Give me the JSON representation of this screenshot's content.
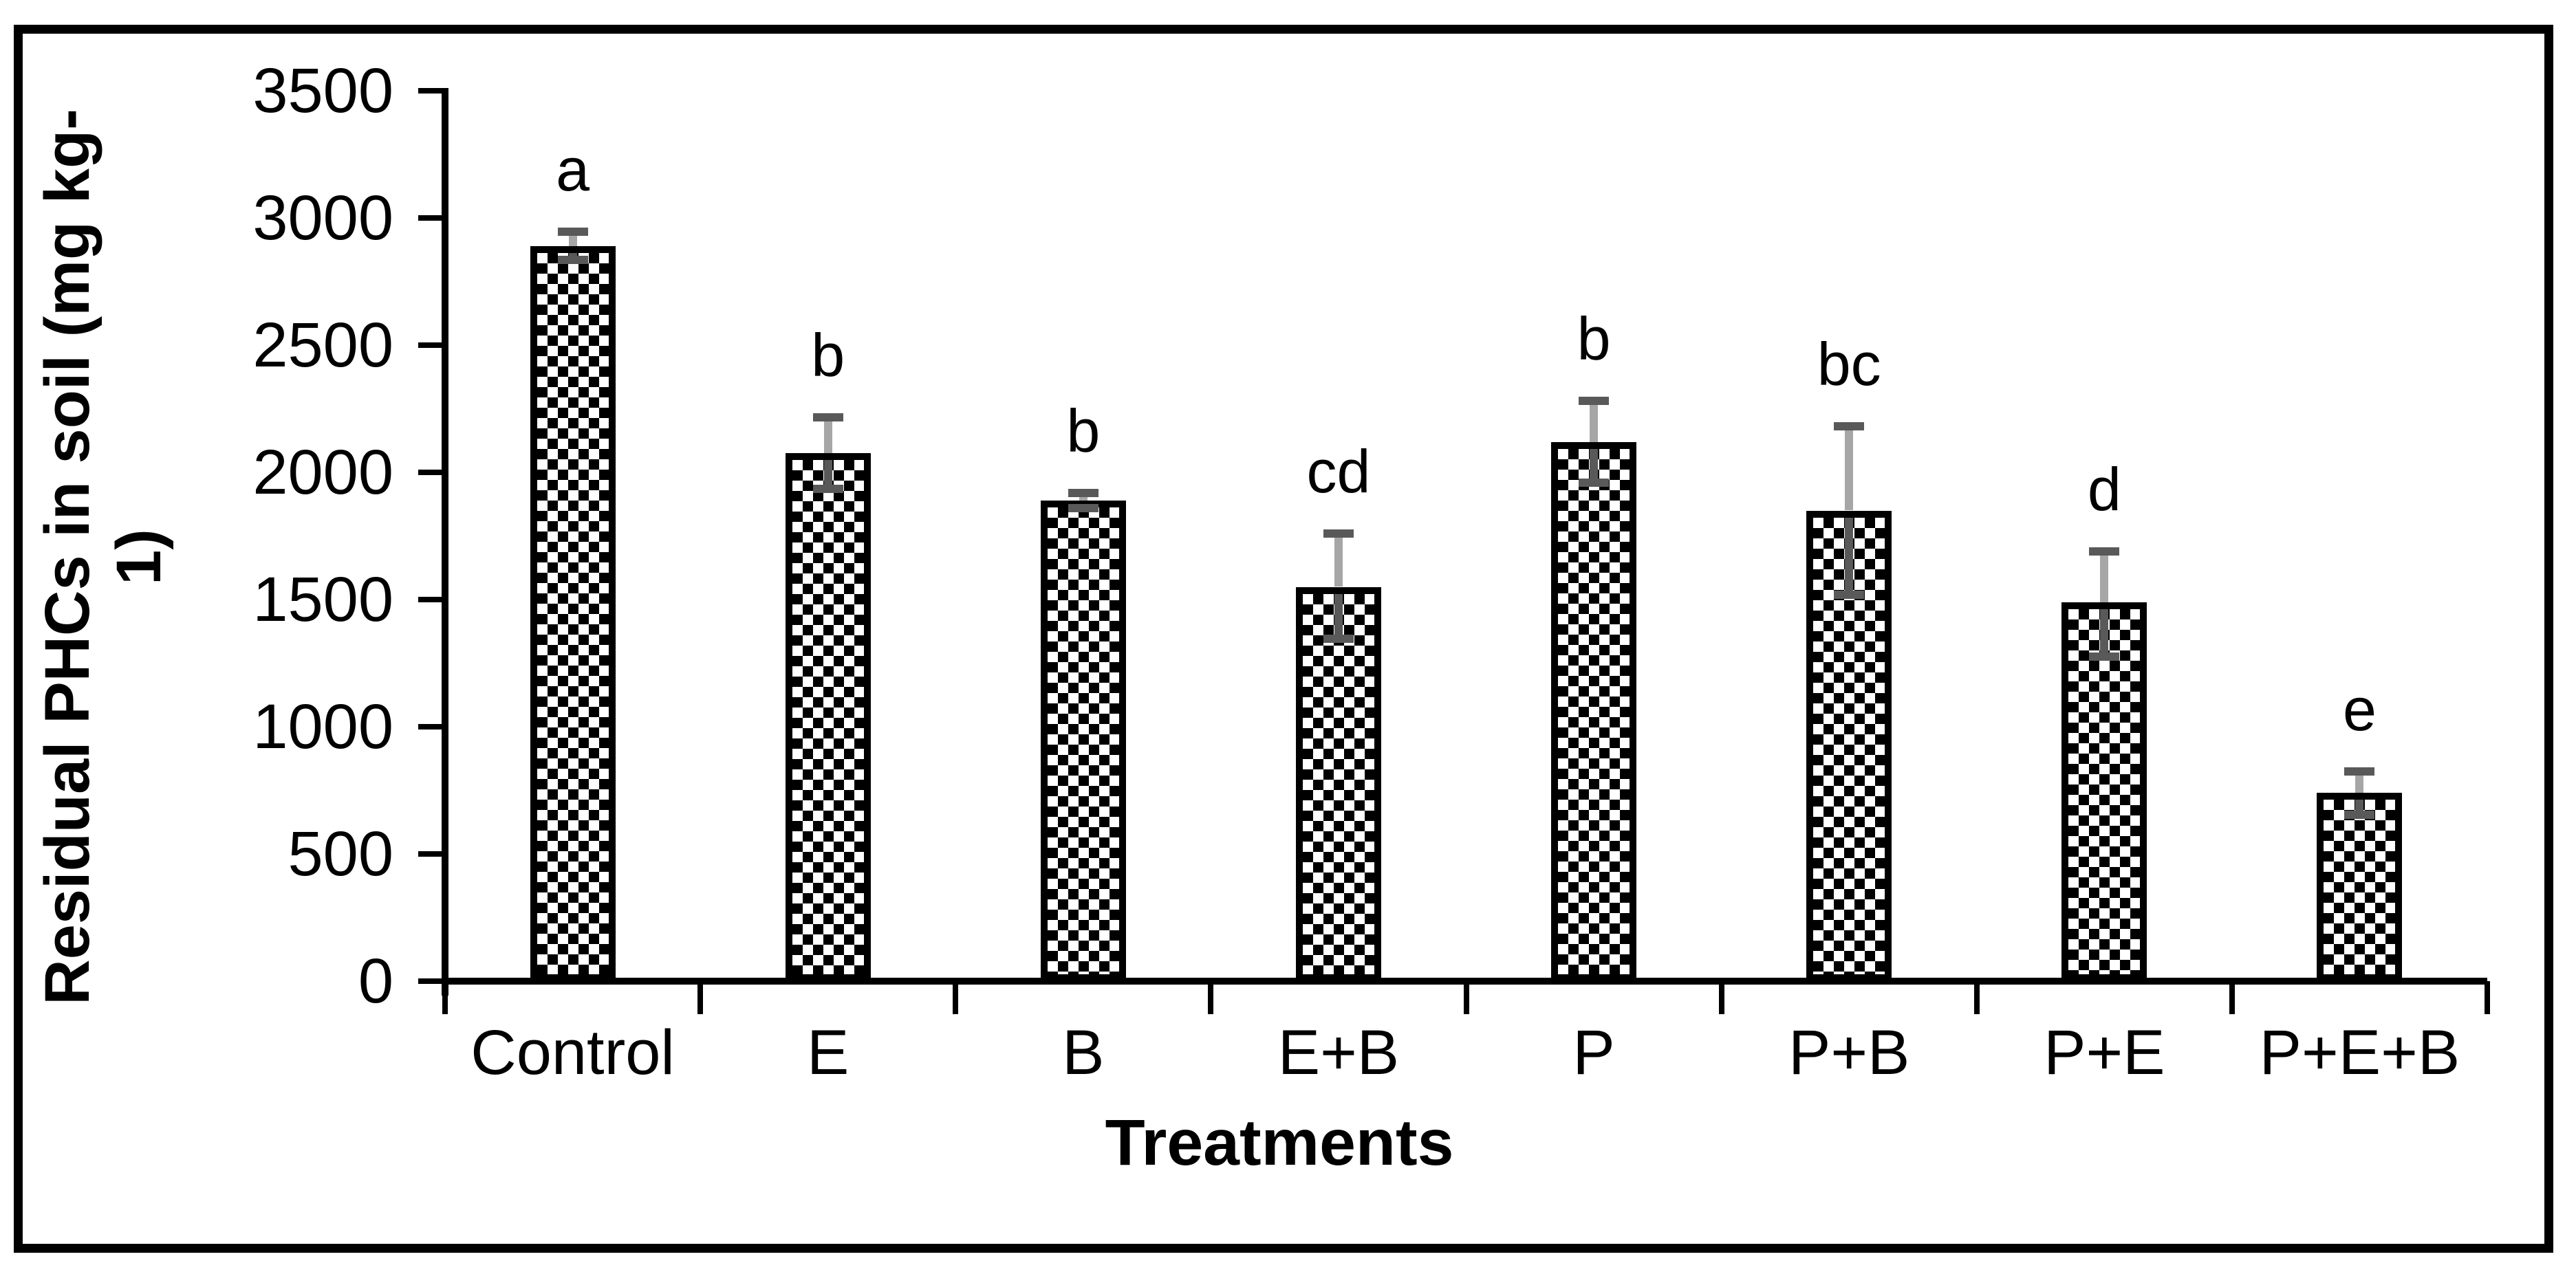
{
  "chart_data": {
    "type": "bar",
    "title": "",
    "xlabel": "Treatments",
    "ylabel": "Residual PHCs in soil (mg kg-1)",
    "ylabel_lines": [
      "Residual PHCs in soil (mg kg-",
      "1)"
    ],
    "categories": [
      "Control",
      "E",
      "B",
      "E+B",
      "P",
      "P+B",
      "P+E",
      "P+E+B"
    ],
    "values": [
      2890,
      2075,
      1890,
      1550,
      2120,
      1850,
      1490,
      740
    ],
    "sig_letters": [
      "a",
      "b",
      "b",
      "cd",
      "b",
      "bc",
      "d",
      "e"
    ],
    "error_plus": [
      55,
      140,
      30,
      210,
      160,
      330,
      200,
      85
    ],
    "error_minus": [
      55,
      140,
      30,
      205,
      160,
      330,
      215,
      85
    ],
    "ylim": [
      0,
      3500
    ],
    "ytick_step": 500,
    "ytick_labels": [
      "0",
      "500",
      "1000",
      "1500",
      "2000",
      "2500",
      "3000",
      "3500"
    ],
    "grid": false,
    "legend_position": "none",
    "bar_fill_pattern": "diagonal-checker",
    "colors": {
      "bar_outline": "#000000",
      "bar_pattern": "#000000",
      "error_cap": "#595959",
      "error_line_upper": "#a6a6a6",
      "error_line_lower": "#595959",
      "axis": "#000000",
      "text": "#000000",
      "frame": "#000000",
      "background": "#ffffff"
    }
  }
}
